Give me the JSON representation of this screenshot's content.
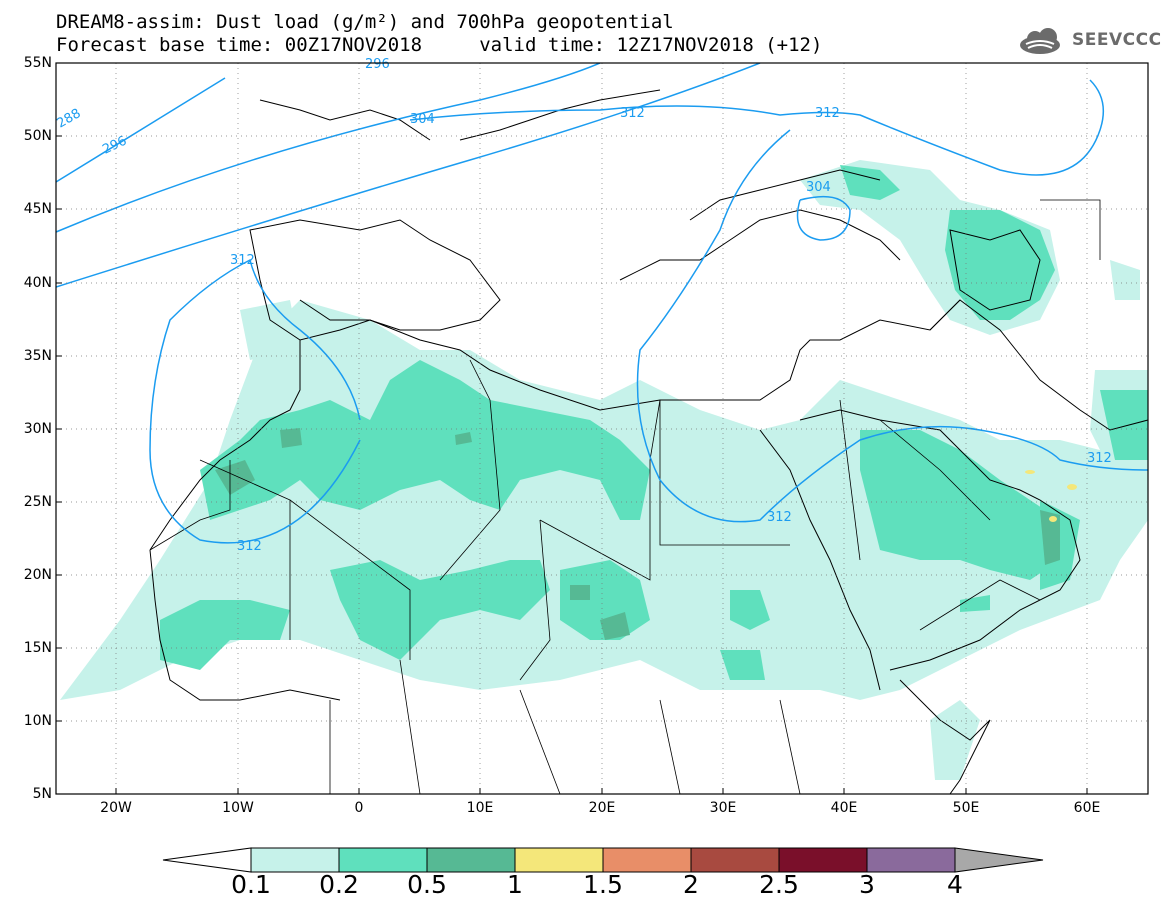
{
  "header": {
    "title_line1": "DREAM8-assim: Dust load (g/m²) and 700hPa geopotential",
    "title_line2": "Forecast base time: 00Z17NOV2018     valid time: 12Z17NOV2018 (+12)",
    "logo_text": "SEEVCCC"
  },
  "map": {
    "lat_labels": [
      "55N",
      "50N",
      "45N",
      "40N",
      "35N",
      "30N",
      "25N",
      "20N",
      "15N",
      "10N",
      "5N"
    ],
    "lon_labels": [
      "20W",
      "10W",
      "0",
      "10E",
      "20E",
      "30E",
      "40E",
      "50E",
      "60E"
    ],
    "contour_labels": [
      "288",
      "296",
      "304",
      "312",
      "312",
      "312",
      "312",
      "312",
      "312",
      "304"
    ],
    "contour_color": "#1b9cf0"
  },
  "colorbar": {
    "labels": [
      "0.1",
      "0.2",
      "0.5",
      "1",
      "1.5",
      "2",
      "2.5",
      "3",
      "4"
    ],
    "colors": [
      "#c6f2ea",
      "#5fe0bd",
      "#56b994",
      "#f4e77a",
      "#e88e68",
      "#a84a40",
      "#7a0f2a",
      "#8a6a9c",
      "#a8a8a8"
    ]
  }
}
